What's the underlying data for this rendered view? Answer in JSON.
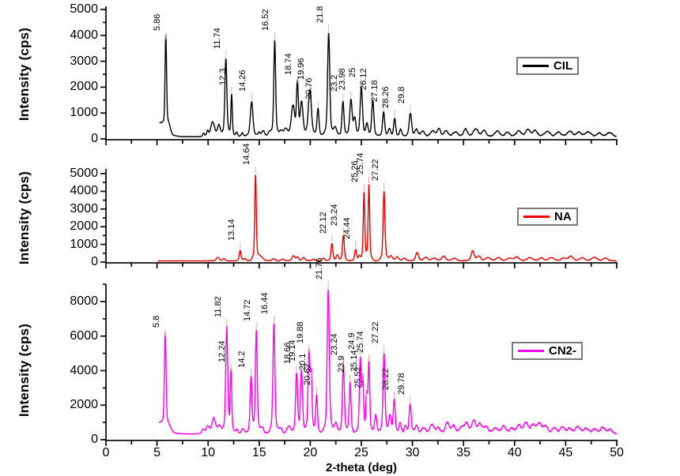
{
  "figure": {
    "xlabel": "2-theta (deg)",
    "ylabel": "Intensity (cps)",
    "x_range": [
      0,
      50
    ],
    "x_ticks": [
      0,
      5,
      10,
      15,
      20,
      25,
      30,
      35,
      40,
      45,
      50
    ],
    "x_minor_ticks": [
      2.5,
      7.5,
      12.5,
      17.5,
      22.5,
      27.5,
      32.5,
      37.5,
      42.5,
      47.5
    ],
    "grid": "off",
    "background": "#ffffff",
    "leader_color": "#f0a8a8"
  },
  "peak_fields": [
    "two_theta",
    "height_cps",
    "width_deg",
    "label"
  ],
  "chart_data": [
    {
      "type": "line",
      "name": "CIL",
      "color": "#000000",
      "legend_position": "right",
      "ylim": [
        0,
        5000
      ],
      "y_max": 5000,
      "y_ticks": [
        0,
        1000,
        2000,
        3000,
        4000,
        5000
      ],
      "y_minor_ticks": [
        500,
        1500,
        2500,
        3500,
        4500
      ],
      "baseline": 85,
      "noise_amp": 30,
      "start_x": 5.25,
      "labeled_peaks": [
        "5.86",
        "11.74",
        "12.3",
        "14.26",
        "16.52",
        "18.74",
        "19.96",
        "20.76",
        "21.8",
        "23.2",
        "23.98",
        "25",
        "26.12",
        "27.18",
        "28.26",
        "29.8"
      ],
      "peaks": [
        [
          5.3,
          520,
          0.45
        ],
        [
          5.86,
          3700,
          0.1,
          "5.86"
        ],
        [
          6.15,
          350,
          0.25
        ],
        [
          9.55,
          120,
          0.1
        ],
        [
          9.95,
          200,
          0.12
        ],
        [
          10.45,
          560,
          0.25
        ],
        [
          11.05,
          420,
          0.18
        ],
        [
          11.74,
          3000,
          0.13,
          "11.74"
        ],
        [
          12.3,
          1600,
          0.09,
          "12.3"
        ],
        [
          12.8,
          180,
          0.12
        ],
        [
          13.35,
          150,
          0.12
        ],
        [
          14.26,
          1350,
          0.17,
          "14.26"
        ],
        [
          15.0,
          150,
          0.15
        ],
        [
          15.4,
          230,
          0.18
        ],
        [
          16.0,
          150,
          0.2
        ],
        [
          16.52,
          3700,
          0.12,
          "16.52"
        ],
        [
          17.15,
          200,
          0.2
        ],
        [
          17.6,
          280,
          0.25
        ],
        [
          18.3,
          1150,
          0.22
        ],
        [
          18.74,
          2000,
          0.12,
          "18.74"
        ],
        [
          19.15,
          1250,
          0.18
        ],
        [
          19.96,
          1800,
          0.2,
          "19.96"
        ],
        [
          20.76,
          1050,
          0.13,
          "20.76"
        ],
        [
          21.8,
          4000,
          0.14,
          "21.8"
        ],
        [
          22.45,
          350,
          0.2
        ],
        [
          23.2,
          1350,
          0.13,
          "23.2"
        ],
        [
          23.98,
          1400,
          0.16,
          "23.98"
        ],
        [
          24.35,
          650,
          0.15
        ],
        [
          25.0,
          1900,
          0.15,
          "25"
        ],
        [
          25.55,
          450,
          0.15
        ],
        [
          26.12,
          1400,
          0.14,
          "26.12"
        ],
        [
          27.18,
          950,
          0.14,
          "27.18"
        ],
        [
          27.75,
          300,
          0.15
        ],
        [
          28.26,
          700,
          0.13,
          "28.26"
        ],
        [
          28.85,
          280,
          0.15
        ],
        [
          29.8,
          900,
          0.16,
          "29.8"
        ],
        [
          30.4,
          250,
          0.2
        ],
        [
          31.0,
          200,
          0.25
        ],
        [
          32.0,
          220,
          0.3
        ],
        [
          32.6,
          300,
          0.2
        ],
        [
          33.3,
          220,
          0.25
        ],
        [
          34.2,
          180,
          0.3
        ],
        [
          35.2,
          280,
          0.25
        ],
        [
          36.2,
          300,
          0.3
        ],
        [
          37.0,
          240,
          0.25
        ],
        [
          38.3,
          220,
          0.3
        ],
        [
          39.3,
          160,
          0.3
        ],
        [
          40.4,
          220,
          0.3
        ],
        [
          41.3,
          260,
          0.3
        ],
        [
          42.0,
          220,
          0.3
        ],
        [
          43.2,
          200,
          0.35
        ],
        [
          44.3,
          170,
          0.3
        ],
        [
          45.4,
          200,
          0.35
        ],
        [
          46.3,
          160,
          0.3
        ],
        [
          47.2,
          180,
          0.35
        ],
        [
          48.3,
          130,
          0.3
        ],
        [
          49.3,
          160,
          0.35
        ]
      ]
    },
    {
      "type": "line",
      "name": "NA",
      "color": "#ee0000",
      "legend_position": "right",
      "ylim": [
        0,
        5000
      ],
      "y_max": 5000,
      "y_ticks": [
        0,
        1000,
        2000,
        3000,
        4000,
        5000
      ],
      "y_minor_ticks": [
        500,
        1500,
        2500,
        3500,
        4500
      ],
      "baseline": 65,
      "noise_amp": 22,
      "start_x": 5.05,
      "labeled_peaks": [
        "13.14",
        "14.64",
        "22.12",
        "23.24",
        "24.44",
        "25.26",
        "25.74",
        "27.22"
      ],
      "peaks": [
        [
          10.95,
          200,
          0.2
        ],
        [
          11.55,
          120,
          0.15
        ],
        [
          13.14,
          580,
          0.12,
          "13.14"
        ],
        [
          13.6,
          120,
          0.15
        ],
        [
          14.64,
          4850,
          0.1,
          "14.64"
        ],
        [
          15.15,
          250,
          0.3
        ],
        [
          16.4,
          120,
          0.2
        ],
        [
          17.3,
          100,
          0.2
        ],
        [
          18.35,
          280,
          0.2
        ],
        [
          18.75,
          200,
          0.15
        ],
        [
          19.35,
          180,
          0.2
        ],
        [
          20.3,
          100,
          0.2
        ],
        [
          21.3,
          160,
          0.15
        ],
        [
          22.12,
          980,
          0.12,
          "22.12"
        ],
        [
          22.65,
          320,
          0.15
        ],
        [
          23.24,
          1430,
          0.12,
          "23.24"
        ],
        [
          24.44,
          640,
          0.13,
          "24.44"
        ],
        [
          24.8,
          250,
          0.12
        ],
        [
          25.26,
          3850,
          0.1,
          "25.26"
        ],
        [
          25.74,
          4300,
          0.1,
          "25.74"
        ],
        [
          27.22,
          3950,
          0.12,
          "27.22"
        ],
        [
          27.9,
          280,
          0.2
        ],
        [
          28.5,
          220,
          0.2
        ],
        [
          29.2,
          160,
          0.2
        ],
        [
          30.45,
          480,
          0.18
        ],
        [
          31.3,
          200,
          0.25
        ],
        [
          32.1,
          150,
          0.3
        ],
        [
          33.05,
          260,
          0.25
        ],
        [
          34.1,
          150,
          0.3
        ],
        [
          35.9,
          560,
          0.2
        ],
        [
          36.5,
          250,
          0.25
        ],
        [
          37.4,
          180,
          0.3
        ],
        [
          38.4,
          180,
          0.3
        ],
        [
          39.5,
          150,
          0.3
        ],
        [
          40.2,
          220,
          0.3
        ],
        [
          41.5,
          180,
          0.35
        ],
        [
          42.6,
          160,
          0.3
        ],
        [
          43.6,
          180,
          0.35
        ],
        [
          44.8,
          150,
          0.3
        ],
        [
          45.5,
          260,
          0.3
        ],
        [
          46.6,
          170,
          0.3
        ],
        [
          47.8,
          200,
          0.35
        ],
        [
          48.9,
          150,
          0.3
        ]
      ]
    },
    {
      "type": "line",
      "name": "CN2-",
      "color": "#ff00f0",
      "legend_position": "right",
      "ylim": [
        0,
        9000
      ],
      "y_max": 8000,
      "y_ticks": [
        0,
        2000,
        4000,
        6000,
        8000
      ],
      "y_minor_ticks": [
        1000,
        3000,
        5000,
        7000,
        9000
      ],
      "baseline": 330,
      "noise_amp": 70,
      "start_x": 5.2,
      "labeled_peaks": [
        "5.8",
        "11.82",
        "12.24",
        "14.2",
        "14.72",
        "16.44",
        "18.66",
        "19.14",
        "19.88",
        "20.1",
        "20.62",
        "21.76",
        "23.24",
        "23.9",
        "24.9",
        "25.14",
        "25.52",
        "25.74",
        "27.22",
        "28.22",
        "29.78"
      ],
      "peaks": [
        [
          5.25,
          600,
          0.5
        ],
        [
          5.8,
          5550,
          0.11,
          "5.8"
        ],
        [
          6.2,
          350,
          0.3
        ],
        [
          9.5,
          250,
          0.15
        ],
        [
          9.95,
          420,
          0.2
        ],
        [
          10.55,
          900,
          0.25
        ],
        [
          11.1,
          450,
          0.2
        ],
        [
          11.82,
          6150,
          0.13,
          "11.82"
        ],
        [
          12.24,
          3550,
          0.1,
          "12.24"
        ],
        [
          12.8,
          250,
          0.15
        ],
        [
          13.4,
          300,
          0.2
        ],
        [
          14.2,
          3250,
          0.12,
          "14.2"
        ],
        [
          14.72,
          5950,
          0.12,
          "14.72"
        ],
        [
          15.3,
          350,
          0.2
        ],
        [
          16.44,
          6350,
          0.13,
          "16.44"
        ],
        [
          17.1,
          300,
          0.2
        ],
        [
          17.9,
          450,
          0.25
        ],
        [
          18.66,
          3450,
          0.13,
          "18.66"
        ],
        [
          19.14,
          3600,
          0.13,
          "19.14"
        ],
        [
          19.88,
          4650,
          0.13,
          "19.88"
        ],
        [
          20.1,
          3100,
          0.1,
          "20.1"
        ],
        [
          20.62,
          2250,
          0.12,
          "20.62"
        ],
        [
          21.76,
          8350,
          0.14,
          "21.76"
        ],
        [
          22.5,
          600,
          0.2
        ],
        [
          23.24,
          3950,
          0.13,
          "23.24"
        ],
        [
          23.9,
          2950,
          0.12,
          "23.9"
        ],
        [
          24.9,
          4300,
          0.12,
          "24.9"
        ],
        [
          25.14,
          3000,
          0.1,
          "25.14"
        ],
        [
          25.52,
          2050,
          0.1,
          "25.52"
        ],
        [
          25.74,
          4100,
          0.11,
          "25.74"
        ],
        [
          26.4,
          1100,
          0.15
        ],
        [
          27.22,
          4650,
          0.13,
          "27.22"
        ],
        [
          27.8,
          1000,
          0.15
        ],
        [
          28.22,
          1950,
          0.13,
          "28.22"
        ],
        [
          28.8,
          620,
          0.15
        ],
        [
          29.3,
          420,
          0.15
        ],
        [
          29.78,
          1700,
          0.14,
          "29.78"
        ],
        [
          30.4,
          470,
          0.2
        ],
        [
          31.1,
          350,
          0.25
        ],
        [
          31.9,
          550,
          0.25
        ],
        [
          32.5,
          340,
          0.25
        ],
        [
          33.4,
          650,
          0.25
        ],
        [
          34.0,
          450,
          0.25
        ],
        [
          34.8,
          360,
          0.3
        ],
        [
          35.3,
          600,
          0.25
        ],
        [
          36.0,
          750,
          0.25
        ],
        [
          36.6,
          550,
          0.25
        ],
        [
          37.2,
          400,
          0.3
        ],
        [
          38.1,
          320,
          0.3
        ],
        [
          38.9,
          420,
          0.3
        ],
        [
          39.7,
          280,
          0.3
        ],
        [
          40.4,
          460,
          0.3
        ],
        [
          41.1,
          600,
          0.3
        ],
        [
          41.8,
          460,
          0.3
        ],
        [
          42.4,
          560,
          0.3
        ],
        [
          43.0,
          420,
          0.3
        ],
        [
          43.9,
          320,
          0.3
        ],
        [
          44.7,
          380,
          0.3
        ],
        [
          45.4,
          280,
          0.3
        ],
        [
          46.2,
          420,
          0.3
        ],
        [
          47.0,
          300,
          0.3
        ],
        [
          47.8,
          260,
          0.3
        ],
        [
          48.6,
          350,
          0.3
        ],
        [
          49.3,
          230,
          0.35
        ]
      ]
    }
  ]
}
